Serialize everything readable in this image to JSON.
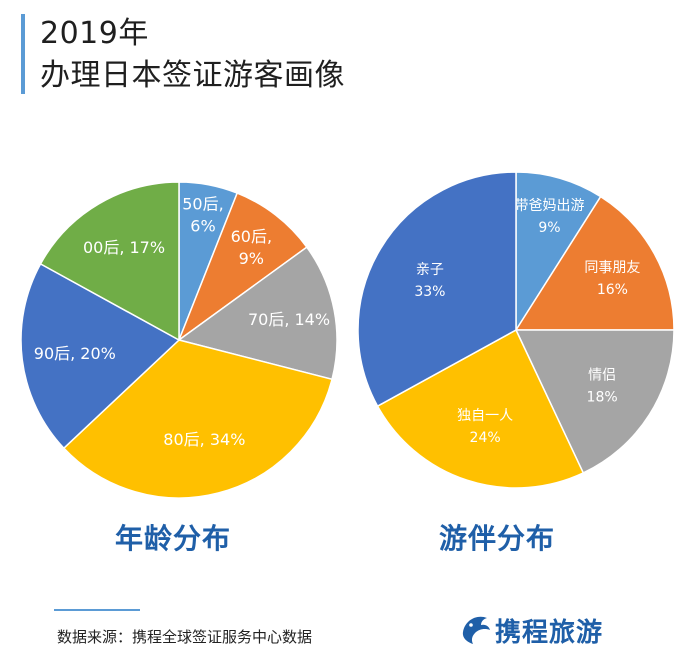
{
  "header": {
    "line1": "2019年",
    "line2": "办理日本签证游客画像"
  },
  "chart_data": [
    {
      "type": "pie",
      "title": "年龄分布",
      "slices": [
        {
          "label": "50后",
          "value": 6,
          "text": "50后,\n6%",
          "color": "#5b9bd5"
        },
        {
          "label": "60后",
          "value": 9,
          "text": "60后,\n9%",
          "color": "#ed7d31"
        },
        {
          "label": "70后",
          "value": 14,
          "text": "70后, 14%",
          "color": "#a5a5a5"
        },
        {
          "label": "80后",
          "value": 34,
          "text": "80后, 34%",
          "color": "#ffc000"
        },
        {
          "label": "90后",
          "value": 20,
          "text": "90后, 20%",
          "color": "#4472c4"
        },
        {
          "label": "00后",
          "value": 17,
          "text": "00后, 17%",
          "color": "#70ad47"
        }
      ]
    },
    {
      "type": "pie",
      "title": "游伴分布",
      "slices": [
        {
          "label": "带爸妈出游",
          "value": 9,
          "text": "带爸妈出游\n9%",
          "color": "#5b9bd5"
        },
        {
          "label": "同事朋友",
          "value": 16,
          "text": "同事朋友\n16%",
          "color": "#ed7d31"
        },
        {
          "label": "情侣",
          "value": 18,
          "text": "情侣\n18%",
          "color": "#a5a5a5"
        },
        {
          "label": "独自一人",
          "value": 24,
          "text": "独自一人\n24%",
          "color": "#ffc000"
        },
        {
          "label": "亲子",
          "value": 33,
          "text": "亲子\n33%",
          "color": "#4472c4"
        }
      ]
    }
  ],
  "footer": {
    "source": "数据来源：携程全球签证服务中心数据",
    "logo_text": "携程旅游"
  }
}
